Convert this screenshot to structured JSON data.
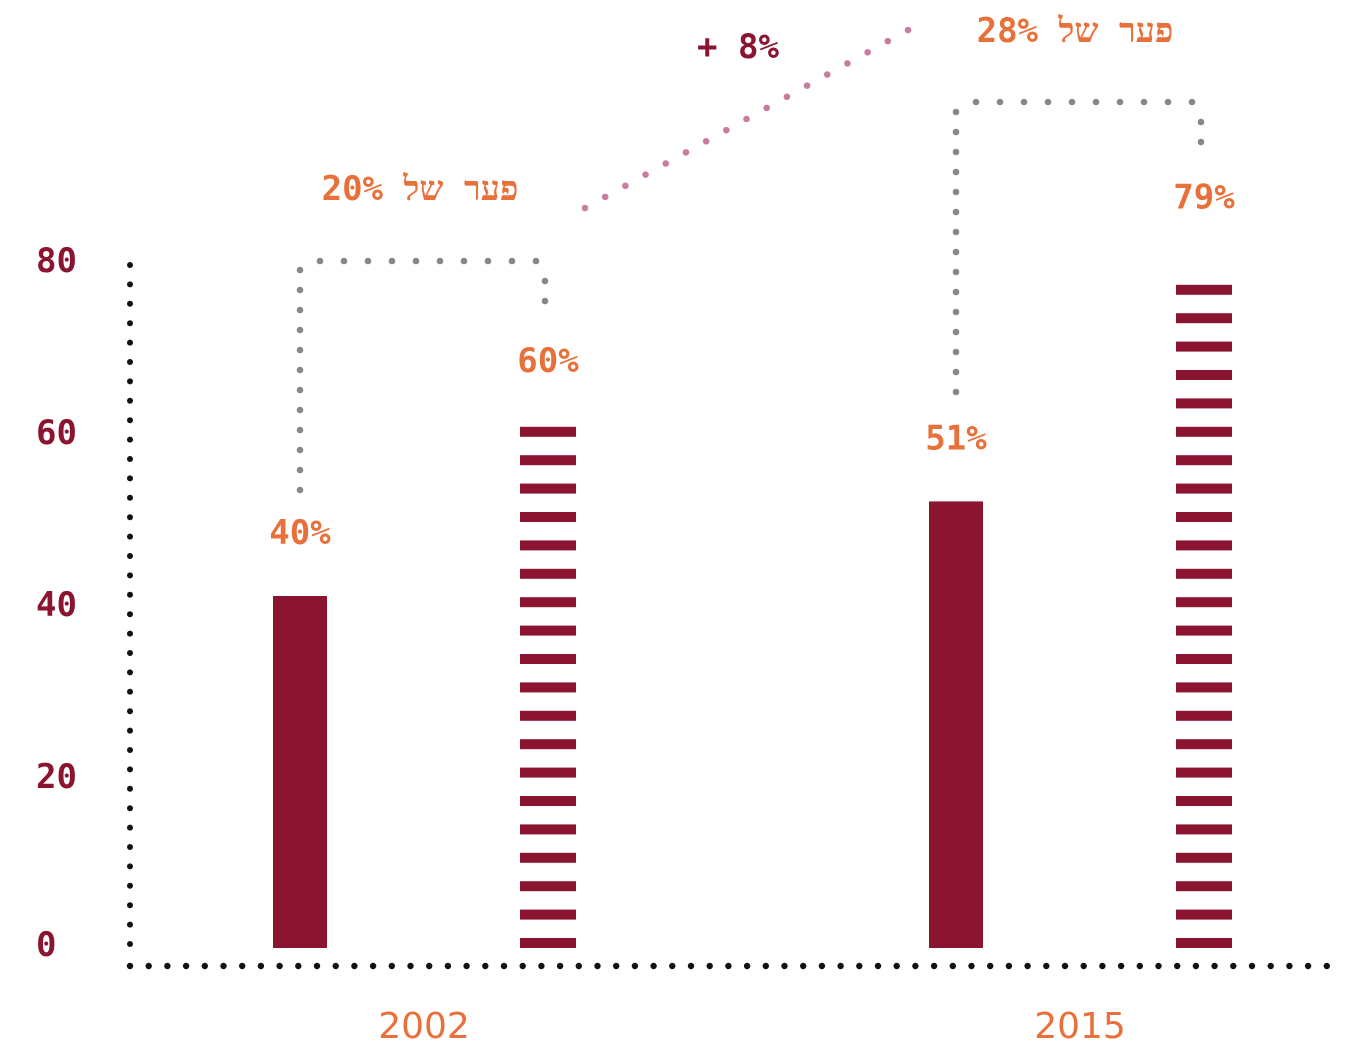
{
  "colors": {
    "bar": "#8b1530",
    "accent_orange": "#e8703a",
    "axis_dots": "#111111",
    "bracket_dots": "#888888",
    "link_dots": "#c87ca0"
  },
  "chart_data": {
    "type": "bar",
    "categories": [
      "2002",
      "2015"
    ],
    "ylim": [
      0,
      80
    ],
    "yticks": [
      "0",
      "20",
      "40",
      "60",
      "80"
    ],
    "series": [
      {
        "style": "solid",
        "values": [
          40,
          51
        ],
        "labels": [
          "40%",
          "51%"
        ]
      },
      {
        "style": "striped",
        "values": [
          60,
          79
        ],
        "labels": [
          "60%",
          "79%"
        ]
      }
    ],
    "gaps": [
      {
        "category": "2002",
        "label": "פער של 20%"
      },
      {
        "category": "2015",
        "label": "פער של 28%"
      }
    ],
    "gap_change_label": "+ 8%",
    "grid": false
  }
}
